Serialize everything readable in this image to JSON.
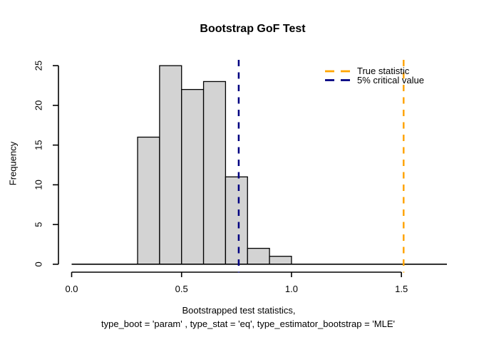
{
  "chart_data": {
    "type": "bar",
    "subtype": "histogram",
    "title": "Bootstrap GoF Test",
    "ylabel": "Frequency",
    "xlabel_line1": "Bootstrapped test statistics,",
    "xlabel_line2": "type_boot = 'param' , type_stat = 'eq', type_estimator_bootstrap = 'MLE'",
    "bin_edges": [
      0.3,
      0.4,
      0.5,
      0.6,
      0.7,
      0.8,
      0.9,
      1.0
    ],
    "counts": [
      16,
      25,
      22,
      23,
      11,
      2,
      1
    ],
    "x_ticks": {
      "values": [
        0,
        0.5,
        1,
        1.5
      ],
      "labels": [
        "0.0",
        "0.5",
        "1.0",
        "1.5"
      ]
    },
    "y_ticks": {
      "values": [
        0,
        5,
        10,
        15,
        20,
        25
      ],
      "labels": [
        "0",
        "5",
        "10",
        "15",
        "20",
        "25"
      ]
    },
    "xlim": [
      -0.06,
      1.707
    ],
    "ylim": [
      -1,
      26
    ],
    "grid": false,
    "bar_fill": "#d3d3d3",
    "bar_stroke": "#000000",
    "axis_color": "#000000",
    "vlines": [
      {
        "id": "true-statistic",
        "x": 1.51,
        "color": "#FFA500",
        "style": "dashed",
        "label": "True statistic"
      },
      {
        "id": "critical-value-5pct",
        "x": 0.76,
        "color": "#000080",
        "style": "dashed",
        "label": "5% critical value"
      }
    ],
    "legend": {
      "position": "top-right",
      "border": false,
      "entries": [
        {
          "label": "True statistic",
          "color": "#FFA500",
          "line_style": "dashed"
        },
        {
          "label": "5% critical value",
          "color": "#000080",
          "line_style": "dashed"
        }
      ]
    }
  }
}
